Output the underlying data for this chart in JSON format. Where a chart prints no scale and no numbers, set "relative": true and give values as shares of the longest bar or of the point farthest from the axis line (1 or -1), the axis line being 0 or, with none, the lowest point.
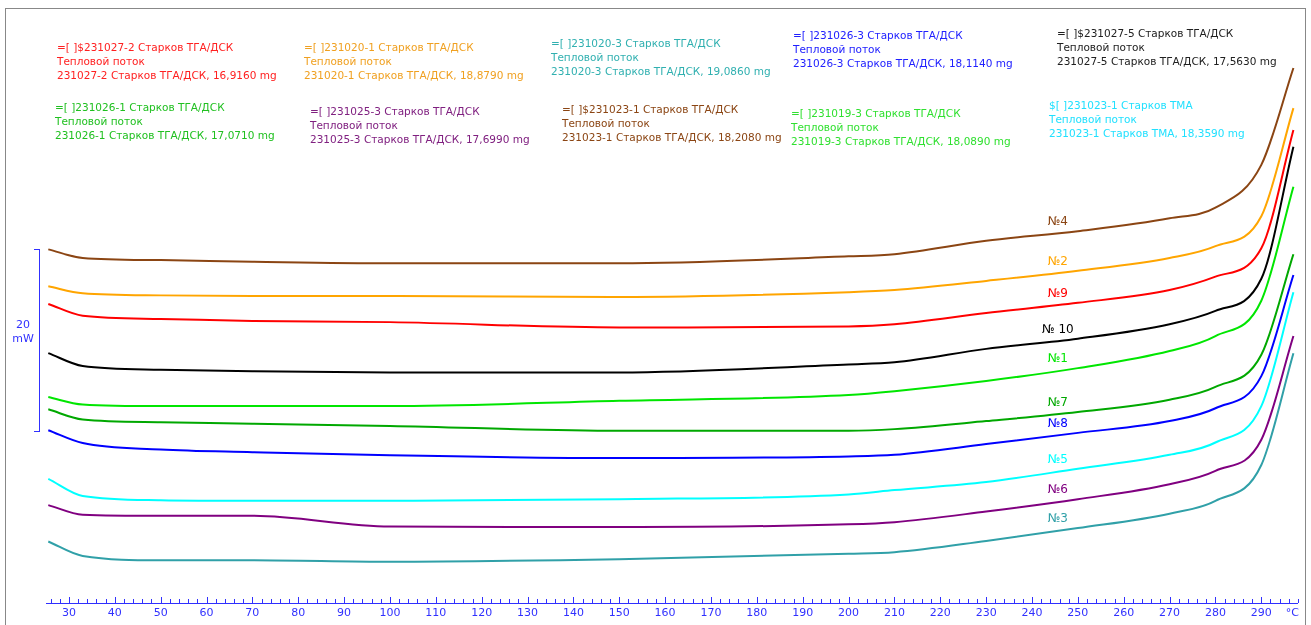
{
  "chart_data": {
    "type": "line",
    "relative": true,
    "xlabel": "°C",
    "ylabel": "20 mW",
    "legend": false,
    "grid": false,
    "marker": "none",
    "line_style": "solid",
    "x": [
      25.5,
      33,
      50,
      70,
      100,
      150,
      200,
      210,
      230,
      250,
      270,
      280,
      290,
      297
    ],
    "xlim": [
      25,
      298
    ],
    "xticks": [
      30,
      40,
      50,
      60,
      70,
      80,
      90,
      100,
      110,
      120,
      130,
      140,
      150,
      160,
      170,
      180,
      190,
      200,
      210,
      220,
      230,
      240,
      250,
      260,
      270,
      280,
      290
    ],
    "series": [
      {
        "name": "№4",
        "color": "#8b4513",
        "values": [
          0.661,
          0.645,
          0.641,
          0.638,
          0.635,
          0.635,
          0.648,
          0.652,
          0.677,
          0.695,
          0.719,
          0.739,
          0.819,
          1
        ]
      },
      {
        "name": "№2",
        "color": "#ffa500",
        "values": [
          0.592,
          0.579,
          0.575,
          0.574,
          0.574,
          0.572,
          0.581,
          0.585,
          0.602,
          0.621,
          0.645,
          0.667,
          0.723,
          0.925
        ]
      },
      {
        "name": "№9",
        "color": "#ff0000",
        "values": [
          0.559,
          0.537,
          0.531,
          0.527,
          0.525,
          0.515,
          0.517,
          0.521,
          0.542,
          0.561,
          0.585,
          0.61,
          0.663,
          0.884
        ]
      },
      {
        "name": "№ 10",
        "color": "#000000",
        "values": [
          0.467,
          0.443,
          0.436,
          0.433,
          0.431,
          0.431,
          0.446,
          0.45,
          0.475,
          0.494,
          0.521,
          0.546,
          0.606,
          0.853
        ]
      },
      {
        "name": "№1",
        "color": "#00e600",
        "values": [
          0.385,
          0.371,
          0.368,
          0.368,
          0.368,
          0.378,
          0.389,
          0.396,
          0.415,
          0.439,
          0.471,
          0.499,
          0.565,
          0.778
        ]
      },
      {
        "name": "№7",
        "color": "#00a800",
        "values": [
          0.362,
          0.343,
          0.338,
          0.335,
          0.331,
          0.322,
          0.322,
          0.325,
          0.34,
          0.357,
          0.38,
          0.404,
          0.464,
          0.652
        ]
      },
      {
        "name": "№8",
        "color": "#0000ff",
        "values": [
          0.323,
          0.299,
          0.287,
          0.282,
          0.276,
          0.271,
          0.274,
          0.277,
          0.297,
          0.318,
          0.34,
          0.364,
          0.424,
          0.613
        ]
      },
      {
        "name": "№5",
        "color": "#00ffff",
        "values": [
          0.232,
          0.2,
          0.192,
          0.191,
          0.191,
          0.194,
          0.203,
          0.211,
          0.226,
          0.251,
          0.277,
          0.3,
          0.368,
          0.581
        ]
      },
      {
        "name": "№6",
        "color": "#800080",
        "values": [
          0.183,
          0.165,
          0.163,
          0.163,
          0.143,
          0.142,
          0.147,
          0.151,
          0.171,
          0.194,
          0.222,
          0.247,
          0.305,
          0.499
        ]
      },
      {
        "name": "№3",
        "color": "#30a0a8",
        "values": [
          0.115,
          0.088,
          0.08,
          0.08,
          0.077,
          0.082,
          0.092,
          0.095,
          0.116,
          0.14,
          0.167,
          0.191,
          0.258,
          0.467
        ]
      }
    ],
    "annotations": [
      "=[ ]$231027-2 Старков ТГА/ДСК\nТепловой поток\n231027-2 Старков ТГА/ДСК, 16,9160 mg",
      "=[ ]231020-1 Старков ТГА/ДСК\nТепловой поток\n231020-1 Старков ТГА/ДСК, 18,8790 mg",
      "=[ ]231020-3 Старков ТГА/ДСК\nТепловой поток\n231020-3 Старков ТГА/ДСК, 19,0860 mg",
      "=[ ]231026-3 Старков ТГА/ДСК\nТепловой поток\n231026-3 Старков ТГА/ДСК, 18,1140 mg",
      "=[ ]$231027-5 Старков ТГА/ДСК\nТепловой поток\n231027-5 Старков ТГА/ДСК, 17,5630 mg",
      "=[ ]231026-1 Старков ТГА/ДСК\nТепловой поток\n231026-1 Старков ТГА/ДСК, 17,0710 mg",
      "=[ ]231025-3 Старков ТГА/ДСК\nТепловой поток\n231025-3 Старков ТГА/ДСК, 17,6990 mg",
      "=[ ]$231023-1 Старков ТГА/ДСК\nТепловой поток\n231023-1 Старков ТГА/ДСК, 18,2080 mg",
      "=[ ]231019-3 Старков ТГА/ДСК\nТепловой поток\n231019-3 Старков ТГА/ДСК, 18,0890 mg",
      "$[ ]231023-1 Старков ТМА\nТепловой поток\n231023-1 Старков ТМА, 18,3590 mg"
    ]
  }
}
